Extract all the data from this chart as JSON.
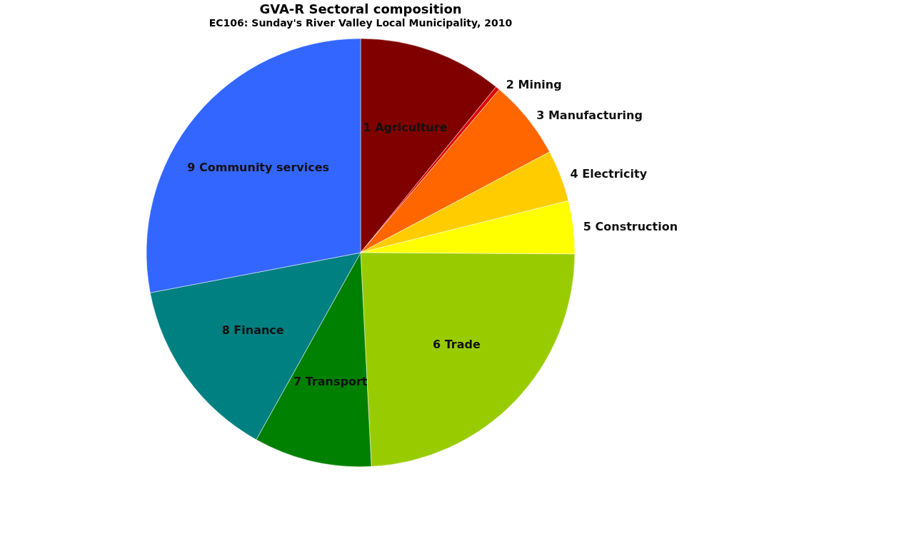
{
  "chart_data": {
    "type": "pie",
    "title": "GVA-R Sectoral composition",
    "subtitle": "EC106: Sunday's River Valley Local Municipality, 2010",
    "categories": [
      "1 Agriculture",
      "2 Mining",
      "3 Manufacturing",
      "4 Electricity",
      "5 Construction",
      "6 Trade",
      "7 Transport",
      "8 Finance",
      "9 Community services"
    ],
    "values": [
      10.9,
      0.3,
      6.0,
      3.9,
      4.0,
      24.1,
      8.9,
      13.9,
      28.0
    ],
    "colors": [
      "#800000",
      "#e00000",
      "#ff6600",
      "#ffcc00",
      "#ffff00",
      "#99cc00",
      "#008000",
      "#008080",
      "#3366ff"
    ],
    "legend": false
  }
}
